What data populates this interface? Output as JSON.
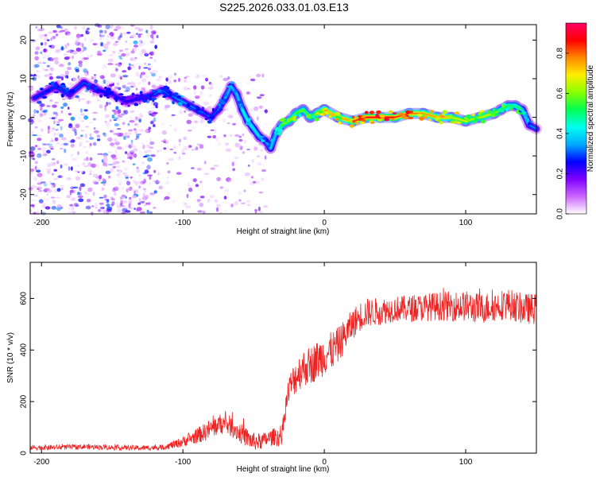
{
  "title": "S225.2026.033.01.03.E13",
  "chart_data": [
    {
      "type": "heatmap",
      "xlabel": "Height of straight line (km)",
      "ylabel": "Frequency (Hz)",
      "xlim": [
        -208,
        150
      ],
      "ylim": [
        -25,
        24
      ],
      "xticks": [
        -200,
        -100,
        0,
        100
      ],
      "yticks": [
        -20,
        -10,
        0,
        10,
        20
      ],
      "colorbar": {
        "label": "Normalized spectral amplitude",
        "range": [
          0.0,
          0.95
        ],
        "ticks": [
          0.0,
          0.2,
          0.4,
          0.6,
          0.8
        ],
        "tick_labels": [
          "0.0",
          "0.2",
          "0.4",
          "0.6",
          "0.8"
        ],
        "colors": [
          "#ffffff",
          "#cc66ff",
          "#8000ff",
          "#0000ff",
          "#00aaff",
          "#00ffee",
          "#00ff55",
          "#88ff00",
          "#ffee00",
          "#ff8800",
          "#ff0000",
          "#ff0066"
        ]
      },
      "ridge": {
        "x": [
          -205,
          -190,
          -180,
          -170,
          -160,
          -150,
          -140,
          -130,
          -120,
          -115,
          -110,
          -105,
          -100,
          -95,
          -90,
          -85,
          -80,
          -75,
          -70,
          -66,
          -62,
          -58,
          -54,
          -50,
          -46,
          -42,
          -38,
          -34,
          -30,
          -25,
          -20,
          -15,
          -10,
          -5,
          0,
          10,
          20,
          30,
          40,
          50,
          60,
          70,
          80,
          90,
          100,
          110,
          120,
          125,
          130,
          135,
          140,
          145,
          150
        ],
        "y": [
          5,
          8,
          6,
          9,
          7,
          6,
          4,
          5,
          6,
          7,
          6,
          5,
          4,
          3,
          2,
          1,
          0,
          2,
          5,
          8,
          6,
          2,
          -1,
          -3,
          -5,
          -6,
          -8,
          -4,
          -2,
          -1,
          1,
          2,
          0,
          1,
          2,
          0,
          -1,
          0,
          0,
          0,
          1,
          1,
          0,
          0,
          -1,
          0,
          1,
          2,
          3,
          3,
          2,
          -2,
          -3
        ],
        "amplitude": [
          0.25,
          0.3,
          0.28,
          0.3,
          0.28,
          0.25,
          0.22,
          0.25,
          0.3,
          0.3,
          0.3,
          0.32,
          0.35,
          0.32,
          0.32,
          0.3,
          0.28,
          0.3,
          0.35,
          0.38,
          0.35,
          0.4,
          0.45,
          0.42,
          0.4,
          0.38,
          0.32,
          0.45,
          0.55,
          0.6,
          0.6,
          0.55,
          0.55,
          0.65,
          0.75,
          0.7,
          0.8,
          0.85,
          0.85,
          0.85,
          0.8,
          0.75,
          0.75,
          0.7,
          0.6,
          0.65,
          0.65,
          0.55,
          0.5,
          0.55,
          0.5,
          0.3,
          0.35
        ]
      },
      "noise_regions": [
        {
          "x_range": [
            -208,
            -118
          ],
          "y_range": [
            -25,
            24
          ],
          "density": "high"
        },
        {
          "x_range": [
            -118,
            -40
          ],
          "y_range": [
            -25,
            12
          ],
          "density": "low"
        }
      ]
    },
    {
      "type": "line",
      "color": "#ee2222",
      "xlabel": "Height of straight line (km)",
      "ylabel": "SNR (10 * v/v)",
      "xlim": [
        -208,
        150
      ],
      "ylim": [
        0,
        740
      ],
      "xticks": [
        -200,
        -100,
        0,
        100
      ],
      "yticks": [
        0,
        200,
        400,
        600
      ],
      "trend": {
        "x": [
          -208,
          -190,
          -170,
          -150,
          -130,
          -115,
          -105,
          -95,
          -85,
          -75,
          -70,
          -65,
          -60,
          -55,
          -50,
          -45,
          -40,
          -35,
          -30,
          -28,
          -25,
          -20,
          -15,
          -10,
          -5,
          0,
          5,
          10,
          15,
          20,
          25,
          30,
          40,
          50,
          60,
          70,
          80,
          90,
          100,
          110,
          120,
          130,
          140,
          150
        ],
        "y": [
          22,
          22,
          25,
          22,
          20,
          22,
          35,
          55,
          80,
          110,
          115,
          100,
          80,
          60,
          45,
          45,
          55,
          65,
          60,
          160,
          250,
          300,
          330,
          340,
          360,
          380,
          395,
          420,
          460,
          500,
          530,
          545,
          550,
          560,
          560,
          565,
          570,
          570,
          570,
          560,
          570,
          580,
          560,
          560
        ]
      },
      "spread": {
        "x": [
          -208,
          -115,
          -100,
          -80,
          -60,
          -40,
          -30,
          -20,
          0,
          20,
          50,
          100,
          150
        ],
        "y": [
          10,
          10,
          20,
          40,
          40,
          30,
          40,
          70,
          80,
          60,
          50,
          60,
          60
        ]
      }
    }
  ]
}
